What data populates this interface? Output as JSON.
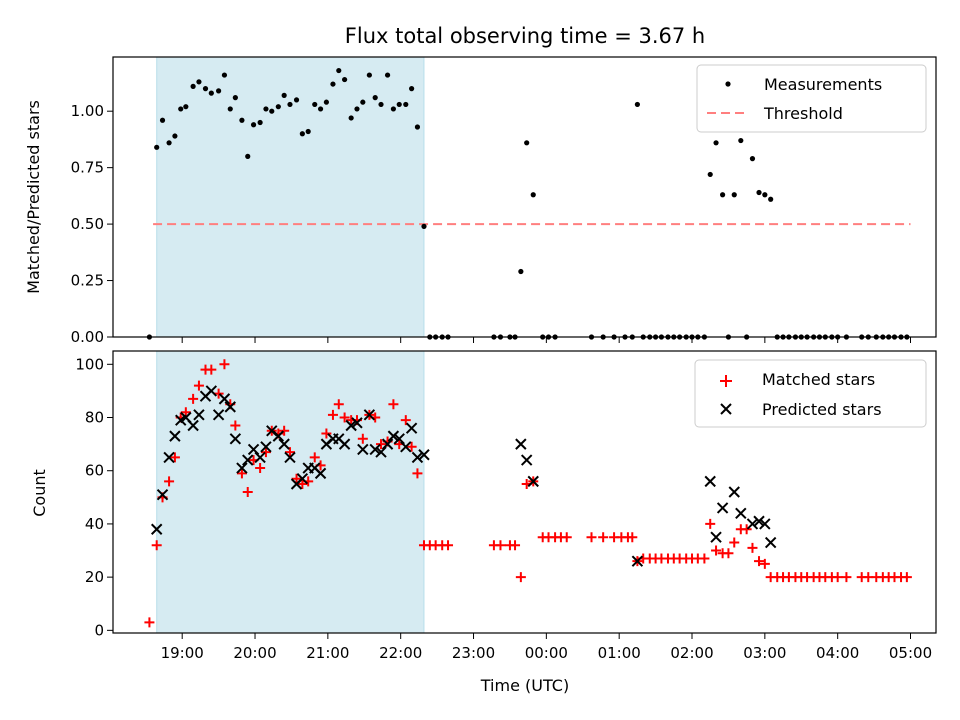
{
  "title": "Flux total observing time = 3.67 h",
  "xlabel": "Time (UTC)",
  "x_tick_labels": [
    "19:00",
    "20:00",
    "21:00",
    "22:00",
    "23:00",
    "00:00",
    "01:00",
    "02:00",
    "03:00",
    "04:00",
    "05:00"
  ],
  "colors": {
    "measurements": "#000000",
    "threshold": "#ff7f7f",
    "matched": "#ff0000",
    "predicted": "#000000",
    "span": "#add8e6"
  },
  "chart_data": [
    {
      "type": "scatter",
      "name": "ratio",
      "ylabel": "Matched/Predicted stars",
      "ylim": [
        0,
        1.24
      ],
      "y_tick_labels": [
        "0.00",
        "0.25",
        "0.50",
        "0.75",
        "1.00"
      ],
      "x_unit": "hours since 19:00",
      "xlim": [
        -0.95,
        10.35
      ],
      "shaded_interval": [
        -0.35,
        3.32
      ],
      "threshold": {
        "name": "Threshold",
        "value": 0.5,
        "x_range": [
          -0.4,
          10.0
        ]
      },
      "legend": [
        "Measurements",
        "Threshold"
      ],
      "points": [
        [
          -0.45,
          0.0
        ],
        [
          -0.35,
          0.84
        ],
        [
          -0.27,
          0.96
        ],
        [
          -0.18,
          0.86
        ],
        [
          -0.1,
          0.89
        ],
        [
          -0.02,
          1.01
        ],
        [
          0.05,
          1.02
        ],
        [
          0.15,
          1.11
        ],
        [
          0.23,
          1.13
        ],
        [
          0.32,
          1.1
        ],
        [
          0.4,
          1.08
        ],
        [
          0.5,
          1.09
        ],
        [
          0.58,
          1.16
        ],
        [
          0.66,
          1.01
        ],
        [
          0.73,
          1.06
        ],
        [
          0.82,
          0.96
        ],
        [
          0.9,
          0.8
        ],
        [
          0.98,
          0.94
        ],
        [
          1.07,
          0.95
        ],
        [
          1.15,
          1.01
        ],
        [
          1.23,
          1.0
        ],
        [
          1.32,
          1.02
        ],
        [
          1.4,
          1.07
        ],
        [
          1.48,
          1.03
        ],
        [
          1.57,
          1.05
        ],
        [
          1.65,
          0.9
        ],
        [
          1.73,
          0.91
        ],
        [
          1.82,
          1.03
        ],
        [
          1.9,
          1.01
        ],
        [
          1.98,
          1.04
        ],
        [
          2.07,
          1.12
        ],
        [
          2.15,
          1.18
        ],
        [
          2.23,
          1.14
        ],
        [
          2.32,
          0.97
        ],
        [
          2.4,
          1.01
        ],
        [
          2.48,
          1.04
        ],
        [
          2.57,
          1.16
        ],
        [
          2.65,
          1.06
        ],
        [
          2.73,
          1.03
        ],
        [
          2.82,
          1.16
        ],
        [
          2.9,
          1.01
        ],
        [
          2.98,
          1.03
        ],
        [
          3.07,
          1.03
        ],
        [
          3.15,
          1.1
        ],
        [
          3.23,
          0.93
        ],
        [
          3.32,
          0.49
        ],
        [
          3.4,
          0.0
        ],
        [
          3.48,
          0.0
        ],
        [
          3.57,
          0.0
        ],
        [
          3.65,
          0.0
        ],
        [
          4.28,
          0.0
        ],
        [
          4.37,
          0.0
        ],
        [
          4.5,
          0.0
        ],
        [
          4.57,
          0.0
        ],
        [
          4.65,
          0.29
        ],
        [
          4.73,
          0.86
        ],
        [
          4.82,
          0.63
        ],
        [
          4.95,
          0.0
        ],
        [
          5.03,
          0.0
        ],
        [
          5.12,
          0.0
        ],
        [
          5.62,
          0.0
        ],
        [
          5.78,
          0.0
        ],
        [
          5.93,
          0.0
        ],
        [
          6.08,
          0.0
        ],
        [
          6.18,
          0.0
        ],
        [
          6.25,
          1.03
        ],
        [
          6.33,
          0.0
        ],
        [
          6.42,
          0.0
        ],
        [
          6.5,
          0.0
        ],
        [
          6.58,
          0.0
        ],
        [
          6.67,
          0.0
        ],
        [
          6.75,
          0.0
        ],
        [
          6.83,
          0.0
        ],
        [
          6.92,
          0.0
        ],
        [
          7.0,
          0.0
        ],
        [
          7.08,
          0.0
        ],
        [
          7.17,
          0.0
        ],
        [
          7.25,
          0.72
        ],
        [
          7.33,
          0.86
        ],
        [
          7.42,
          0.63
        ],
        [
          7.5,
          0.0
        ],
        [
          7.58,
          0.63
        ],
        [
          7.67,
          0.87
        ],
        [
          7.75,
          0.0
        ],
        [
          7.83,
          0.79
        ],
        [
          7.92,
          0.64
        ],
        [
          8.0,
          0.63
        ],
        [
          8.08,
          0.61
        ],
        [
          8.17,
          0.0
        ],
        [
          8.25,
          0.0
        ],
        [
          8.33,
          0.0
        ],
        [
          8.42,
          0.0
        ],
        [
          8.5,
          0.0
        ],
        [
          8.58,
          0.0
        ],
        [
          8.67,
          0.0
        ],
        [
          8.75,
          0.0
        ],
        [
          8.83,
          0.0
        ],
        [
          8.92,
          0.0
        ],
        [
          9.0,
          0.0
        ],
        [
          9.12,
          0.0
        ],
        [
          9.33,
          0.0
        ],
        [
          9.42,
          0.0
        ],
        [
          9.53,
          0.0
        ],
        [
          9.62,
          0.0
        ],
        [
          9.7,
          0.0
        ],
        [
          9.78,
          0.0
        ],
        [
          9.87,
          0.0
        ],
        [
          9.95,
          0.0
        ]
      ]
    },
    {
      "type": "scatter",
      "name": "counts",
      "ylabel": "Count",
      "ylim": [
        -1,
        105
      ],
      "y_tick_labels": [
        "0",
        "20",
        "40",
        "60",
        "80",
        "100"
      ],
      "x_unit": "hours since 19:00",
      "xlim": [
        -0.95,
        10.35
      ],
      "shaded_interval": [
        -0.35,
        3.32
      ],
      "legend": [
        "Matched stars",
        "Predicted stars"
      ],
      "matched": [
        [
          -0.45,
          3
        ],
        [
          -0.35,
          32
        ],
        [
          -0.27,
          50
        ],
        [
          -0.18,
          56
        ],
        [
          -0.1,
          65
        ],
        [
          -0.02,
          80
        ],
        [
          0.05,
          82
        ],
        [
          0.15,
          87
        ],
        [
          0.23,
          92
        ],
        [
          0.32,
          98
        ],
        [
          0.4,
          98
        ],
        [
          0.5,
          89
        ],
        [
          0.58,
          100
        ],
        [
          0.66,
          85
        ],
        [
          0.73,
          77
        ],
        [
          0.82,
          59
        ],
        [
          0.9,
          52
        ],
        [
          0.98,
          64
        ],
        [
          1.07,
          61
        ],
        [
          1.15,
          67
        ],
        [
          1.23,
          75
        ],
        [
          1.32,
          74
        ],
        [
          1.4,
          75
        ],
        [
          1.48,
          67
        ],
        [
          1.57,
          57
        ],
        [
          1.65,
          55
        ],
        [
          1.73,
          56
        ],
        [
          1.82,
          65
        ],
        [
          1.9,
          62
        ],
        [
          1.98,
          74
        ],
        [
          2.07,
          81
        ],
        [
          2.15,
          85
        ],
        [
          2.23,
          80
        ],
        [
          2.32,
          79
        ],
        [
          2.4,
          79
        ],
        [
          2.48,
          72
        ],
        [
          2.57,
          81
        ],
        [
          2.65,
          80
        ],
        [
          2.73,
          70
        ],
        [
          2.82,
          71
        ],
        [
          2.9,
          85
        ],
        [
          2.98,
          70
        ],
        [
          3.07,
          79
        ],
        [
          3.15,
          69
        ],
        [
          3.23,
          59
        ],
        [
          3.32,
          32
        ],
        [
          3.4,
          32
        ],
        [
          3.48,
          32
        ],
        [
          3.57,
          32
        ],
        [
          3.65,
          32
        ],
        [
          4.28,
          32
        ],
        [
          4.37,
          32
        ],
        [
          4.5,
          32
        ],
        [
          4.57,
          32
        ],
        [
          4.65,
          20
        ],
        [
          4.73,
          55
        ],
        [
          4.82,
          56
        ],
        [
          4.95,
          35
        ],
        [
          5.03,
          35
        ],
        [
          5.12,
          35
        ],
        [
          5.2,
          35
        ],
        [
          5.28,
          35
        ],
        [
          5.62,
          35
        ],
        [
          5.78,
          35
        ],
        [
          5.93,
          35
        ],
        [
          6.03,
          35
        ],
        [
          6.12,
          35
        ],
        [
          6.18,
          35
        ],
        [
          6.25,
          26
        ],
        [
          6.33,
          27
        ],
        [
          6.42,
          27
        ],
        [
          6.5,
          27
        ],
        [
          6.58,
          27
        ],
        [
          6.67,
          27
        ],
        [
          6.75,
          27
        ],
        [
          6.83,
          27
        ],
        [
          6.92,
          27
        ],
        [
          7.0,
          27
        ],
        [
          7.08,
          27
        ],
        [
          7.17,
          27
        ],
        [
          7.25,
          40
        ],
        [
          7.33,
          30
        ],
        [
          7.42,
          29
        ],
        [
          7.5,
          29
        ],
        [
          7.58,
          33
        ],
        [
          7.67,
          38
        ],
        [
          7.75,
          38
        ],
        [
          7.83,
          31
        ],
        [
          7.92,
          26
        ],
        [
          8.0,
          25
        ],
        [
          8.08,
          20
        ],
        [
          8.17,
          20
        ],
        [
          8.25,
          20
        ],
        [
          8.33,
          20
        ],
        [
          8.42,
          20
        ],
        [
          8.5,
          20
        ],
        [
          8.58,
          20
        ],
        [
          8.67,
          20
        ],
        [
          8.75,
          20
        ],
        [
          8.83,
          20
        ],
        [
          8.92,
          20
        ],
        [
          9.0,
          20
        ],
        [
          9.12,
          20
        ],
        [
          9.33,
          20
        ],
        [
          9.42,
          20
        ],
        [
          9.53,
          20
        ],
        [
          9.62,
          20
        ],
        [
          9.7,
          20
        ],
        [
          9.78,
          20
        ],
        [
          9.87,
          20
        ],
        [
          9.95,
          20
        ]
      ],
      "predicted": [
        [
          -0.35,
          38
        ],
        [
          -0.27,
          51
        ],
        [
          -0.18,
          65
        ],
        [
          -0.1,
          73
        ],
        [
          -0.02,
          79
        ],
        [
          0.05,
          80
        ],
        [
          0.15,
          77
        ],
        [
          0.23,
          81
        ],
        [
          0.32,
          88
        ],
        [
          0.4,
          90
        ],
        [
          0.5,
          81
        ],
        [
          0.58,
          87
        ],
        [
          0.66,
          84
        ],
        [
          0.73,
          72
        ],
        [
          0.82,
          61
        ],
        [
          0.9,
          64
        ],
        [
          0.98,
          68
        ],
        [
          1.07,
          65
        ],
        [
          1.15,
          69
        ],
        [
          1.23,
          75
        ],
        [
          1.32,
          73
        ],
        [
          1.4,
          70
        ],
        [
          1.48,
          65
        ],
        [
          1.57,
          55
        ],
        [
          1.65,
          57
        ],
        [
          1.73,
          61
        ],
        [
          1.82,
          61
        ],
        [
          1.9,
          59
        ],
        [
          1.98,
          70
        ],
        [
          2.07,
          72
        ],
        [
          2.15,
          72
        ],
        [
          2.23,
          70
        ],
        [
          2.32,
          77
        ],
        [
          2.4,
          78
        ],
        [
          2.48,
          68
        ],
        [
          2.57,
          81
        ],
        [
          2.65,
          68
        ],
        [
          2.73,
          67
        ],
        [
          2.82,
          70
        ],
        [
          2.9,
          73
        ],
        [
          2.98,
          72
        ],
        [
          3.07,
          69
        ],
        [
          3.15,
          76
        ],
        [
          3.23,
          65
        ],
        [
          3.32,
          66
        ],
        [
          4.65,
          70
        ],
        [
          4.73,
          64
        ],
        [
          4.82,
          56
        ],
        [
          6.25,
          26
        ],
        [
          7.25,
          56
        ],
        [
          7.33,
          35
        ],
        [
          7.42,
          46
        ],
        [
          7.58,
          52
        ],
        [
          7.67,
          44
        ],
        [
          7.83,
          40
        ],
        [
          7.92,
          41
        ],
        [
          8.0,
          40
        ],
        [
          8.08,
          33
        ]
      ]
    }
  ]
}
